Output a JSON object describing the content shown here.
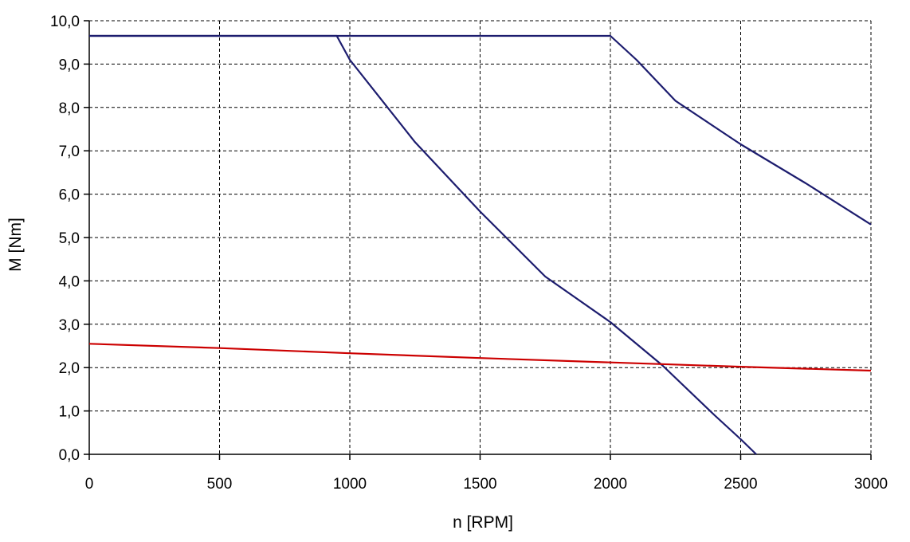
{
  "chart_data": {
    "type": "line",
    "title": "",
    "xlabel": "n [RPM]",
    "ylabel": "M [Nm]",
    "xlim": [
      0,
      3000
    ],
    "ylim": [
      0,
      10
    ],
    "grid": true,
    "grid_style": "dashed",
    "xticks": [
      0,
      500,
      1000,
      1500,
      2000,
      2500,
      3000
    ],
    "xtick_labels": [
      "0",
      "500",
      "1000",
      "1500",
      "2000",
      "2500",
      "3000"
    ],
    "yticks": [
      0,
      1,
      2,
      3,
      4,
      5,
      6,
      7,
      8,
      9,
      10
    ],
    "ytick_labels": [
      "0,0",
      "1,0",
      "2,0",
      "3,0",
      "4,0",
      "5,0",
      "6,0",
      "7,0",
      "8,0",
      "9,0",
      "10,0"
    ],
    "series": [
      {
        "color": "#1c1c6e",
        "points": [
          [
            0,
            9.65
          ],
          [
            950,
            9.65
          ],
          [
            1000,
            9.1
          ],
          [
            1250,
            7.2
          ],
          [
            1500,
            5.6
          ],
          [
            1750,
            4.1
          ],
          [
            2000,
            3.05
          ],
          [
            2200,
            2.05
          ],
          [
            2400,
            0.9
          ],
          [
            2500,
            0.35
          ],
          [
            2560,
            0.0
          ]
        ]
      },
      {
        "color": "#1c1c6e",
        "points": [
          [
            0,
            9.65
          ],
          [
            2000,
            9.65
          ],
          [
            2100,
            9.1
          ],
          [
            2250,
            8.15
          ],
          [
            2500,
            7.15
          ],
          [
            2750,
            6.25
          ],
          [
            3000,
            5.3
          ]
        ]
      },
      {
        "color": "#cc0000",
        "points": [
          [
            0,
            2.55
          ],
          [
            500,
            2.45
          ],
          [
            1000,
            2.33
          ],
          [
            1500,
            2.22
          ],
          [
            2000,
            2.12
          ],
          [
            2500,
            2.02
          ],
          [
            3000,
            1.93
          ]
        ]
      }
    ]
  }
}
